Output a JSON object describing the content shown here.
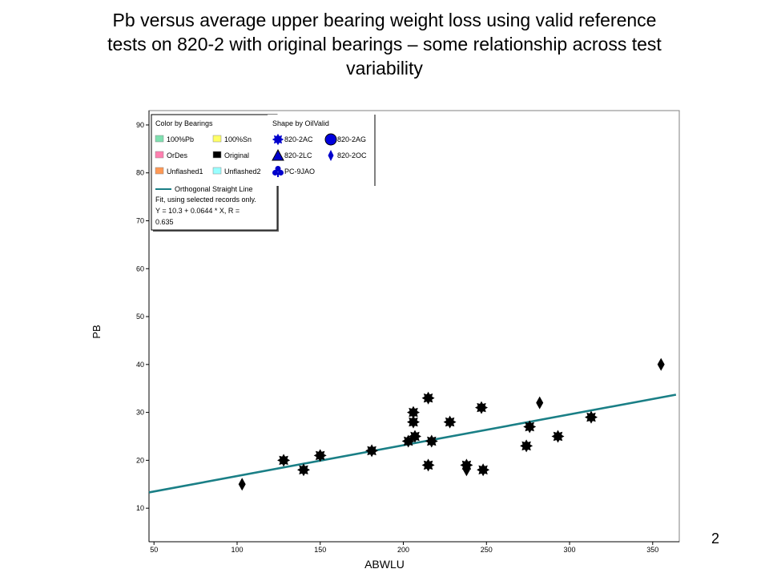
{
  "slide": {
    "title_lines": [
      "Pb versus average upper bearing weight loss using valid reference",
      "tests on 820-2 with original bearings – some relationship across test",
      "variability"
    ],
    "page_number": "2"
  },
  "chart_data": {
    "type": "scatter",
    "xlabel": "ABWLU",
    "ylabel": "PB",
    "xlim": [
      47,
      366
    ],
    "ylim": [
      3,
      93
    ],
    "xticks": [
      50,
      100,
      150,
      200,
      250,
      300,
      350
    ],
    "yticks": [
      10,
      20,
      30,
      40,
      50,
      60,
      70,
      80,
      90
    ],
    "grid": false,
    "legend_position": "top-left",
    "legend": {
      "color_title": "Color by Bearings",
      "color_items": [
        {
          "label": "100%Pb",
          "color": "#7fe0b0"
        },
        {
          "label": "100%Sn",
          "color": "#ffff66"
        },
        {
          "label": "OrDes",
          "color": "#ff80b0"
        },
        {
          "label": "Original",
          "color": "#000000"
        },
        {
          "label": "Unflashed1",
          "color": "#ff9955"
        },
        {
          "label": "Unflashed2",
          "color": "#99ffff"
        }
      ],
      "shape_title": "Shape by OilValid",
      "shape_items": [
        {
          "label": "820-2AC",
          "shape": "star"
        },
        {
          "label": "820-2AG",
          "shape": "circle"
        },
        {
          "label": "820-2LC",
          "shape": "triangle"
        },
        {
          "label": "820-2OC",
          "shape": "diamond"
        },
        {
          "label": "PC-9JAO",
          "shape": "club"
        }
      ],
      "fit_title": "Orthogonal Straight Line",
      "fit_lines": [
        "Fit, using selected records only.",
        "Y = 10.3 + 0.0644 * X, R =",
        "0.635"
      ]
    },
    "fit_line": {
      "x0": 47,
      "y0": 13.3,
      "x1": 364,
      "y1": 33.7,
      "color": "#1a7f86"
    },
    "series": [
      {
        "shape": "star",
        "color": "#000000",
        "points": [
          {
            "x": 128,
            "y": 20
          },
          {
            "x": 140,
            "y": 18
          },
          {
            "x": 150,
            "y": 21
          },
          {
            "x": 181,
            "y": 22
          },
          {
            "x": 203,
            "y": 24
          },
          {
            "x": 206,
            "y": 30
          },
          {
            "x": 206,
            "y": 28
          },
          {
            "x": 207,
            "y": 25
          },
          {
            "x": 215,
            "y": 33
          },
          {
            "x": 215,
            "y": 19
          },
          {
            "x": 217,
            "y": 24
          },
          {
            "x": 228,
            "y": 28
          },
          {
            "x": 238,
            "y": 19
          },
          {
            "x": 247,
            "y": 31
          },
          {
            "x": 248,
            "y": 18
          },
          {
            "x": 274,
            "y": 23
          },
          {
            "x": 276,
            "y": 27
          },
          {
            "x": 293,
            "y": 25
          },
          {
            "x": 313,
            "y": 29
          }
        ]
      },
      {
        "shape": "diamond",
        "color": "#000000",
        "points": [
          {
            "x": 103,
            "y": 15
          },
          {
            "x": 238,
            "y": 18
          },
          {
            "x": 282,
            "y": 32
          },
          {
            "x": 355,
            "y": 40
          }
        ]
      }
    ]
  }
}
